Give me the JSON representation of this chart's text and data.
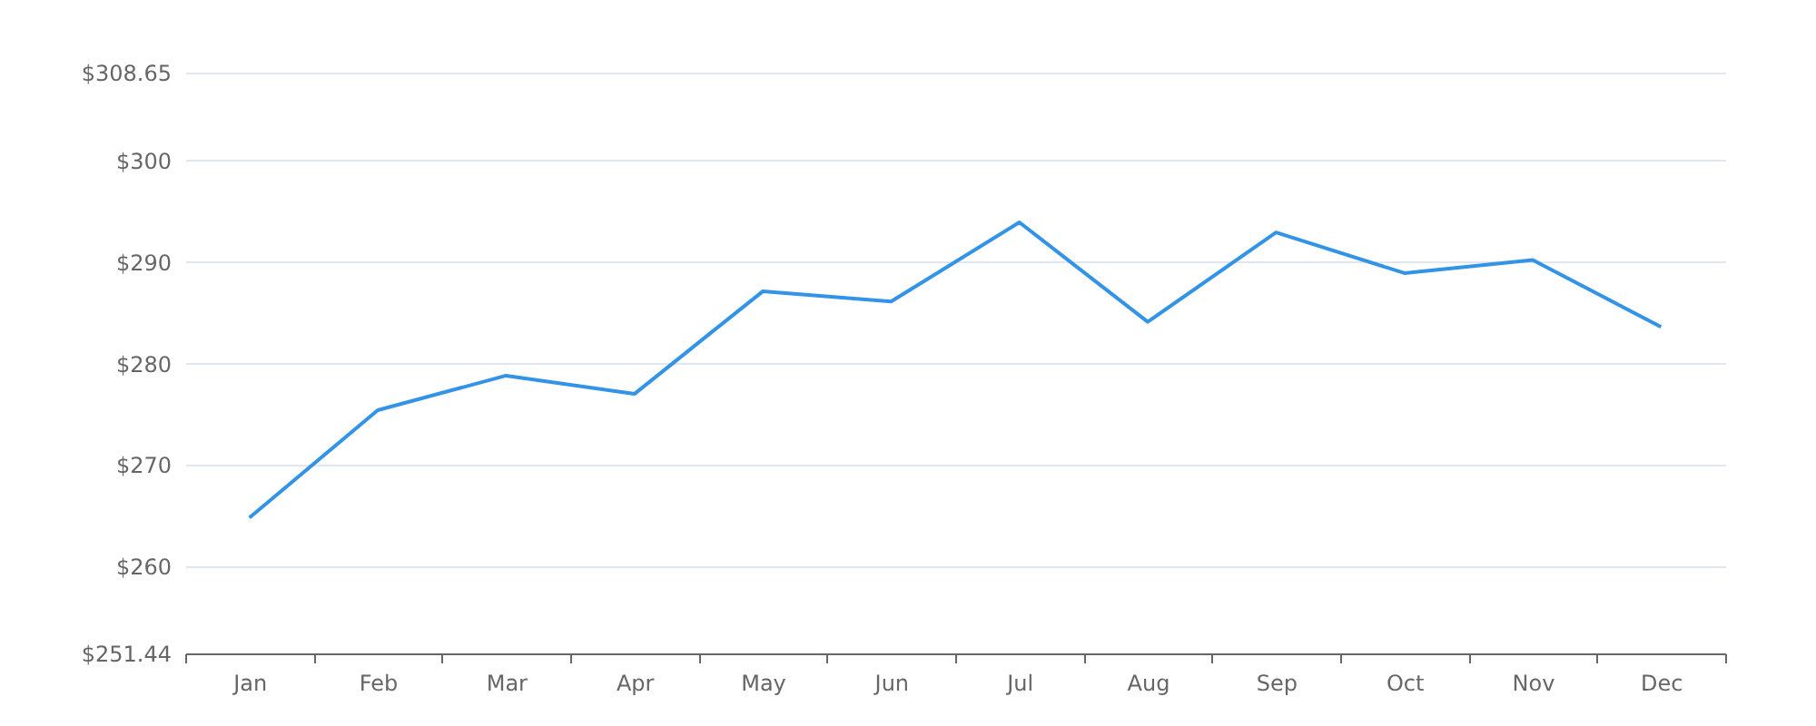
{
  "chart_data": {
    "type": "line",
    "categories": [
      "Jan",
      "Feb",
      "Mar",
      "Apr",
      "May",
      "Jun",
      "Jul",
      "Aug",
      "Sep",
      "Oct",
      "Nov",
      "Dec"
    ],
    "series": [
      {
        "color": "#3393e6",
        "values": [
          264.8,
          275.4,
          278.8,
          277.0,
          287.1,
          286.1,
          293.9,
          284.1,
          292.9,
          288.9,
          290.2,
          283.6
        ]
      }
    ],
    "ylim": [
      251.44,
      308.65
    ],
    "yticks": [
      {
        "value": 251.44,
        "label": "$251.44"
      },
      {
        "value": 260,
        "label": "$260"
      },
      {
        "value": 270,
        "label": "$270"
      },
      {
        "value": 280,
        "label": "$280"
      },
      {
        "value": 290,
        "label": "$290"
      },
      {
        "value": 300,
        "label": "$300"
      },
      {
        "value": 308.65,
        "label": "$308.65"
      }
    ],
    "grid": "y",
    "marker": "none",
    "line_style": "solid"
  }
}
